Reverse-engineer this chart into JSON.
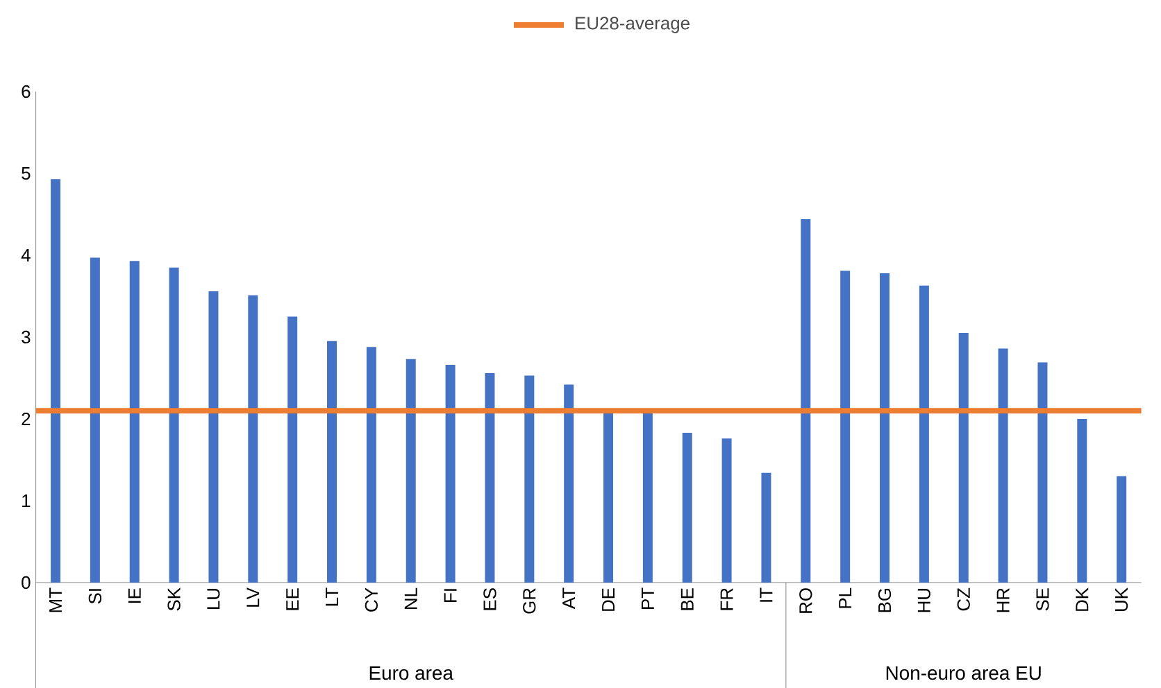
{
  "chart_data": {
    "type": "bar",
    "categories": [
      "MT",
      "SI",
      "IE",
      "SK",
      "LU",
      "LV",
      "EE",
      "LT",
      "CY",
      "NL",
      "FI",
      "ES",
      "GR",
      "AT",
      "DE",
      "PT",
      "BE",
      "FR",
      "IT",
      "RO",
      "PL",
      "BG",
      "HU",
      "CZ",
      "HR",
      "SE",
      "DK",
      "UK"
    ],
    "values": [
      4.93,
      3.97,
      3.93,
      3.85,
      3.56,
      3.51,
      3.25,
      2.95,
      2.88,
      2.73,
      2.66,
      2.56,
      2.53,
      2.42,
      2.1,
      2.1,
      1.83,
      1.76,
      1.34,
      4.44,
      3.81,
      3.78,
      3.63,
      3.05,
      2.86,
      2.69,
      2.0,
      1.3
    ],
    "color": "#4472c4",
    "ylim": [
      0,
      6
    ],
    "yticks": [
      0,
      1,
      2,
      3,
      4,
      5,
      6
    ],
    "ref_lines": [
      {
        "axis": "y",
        "value": 2.1,
        "label": "EU28-average",
        "color": "#ed7d31"
      }
    ],
    "legend": "top",
    "annotations": [
      "Euro area",
      "Non-euro area EU"
    ]
  }
}
